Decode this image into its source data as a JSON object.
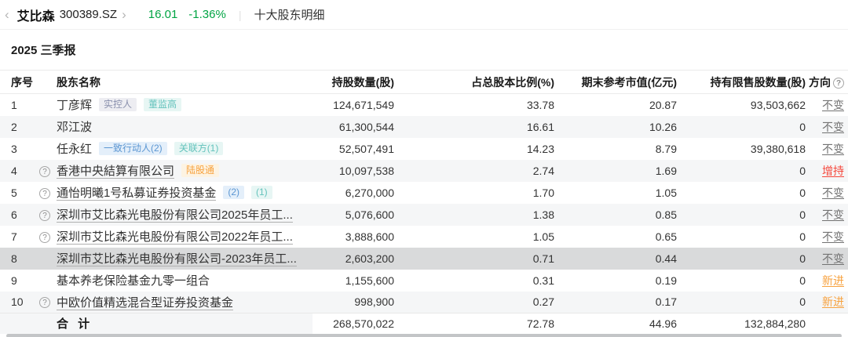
{
  "icons": {
    "back": "‹",
    "forward": "›",
    "help": "?"
  },
  "colors": {
    "quote_green": "#00a443",
    "direction_unchanged": "#737373",
    "direction_increase_red": "#f5473b",
    "direction_new_orange": "#f7a23f",
    "row_stripe": "#f5f6f7",
    "row_highlight": "#d9dadb",
    "badge_blue": "#5b96d2",
    "badge_teal": "#64c3bc",
    "badge_gray": "#8a90ad",
    "badge_orange": "#f7a23f"
  },
  "topbar": {
    "stock_name": "艾比森",
    "stock_code": "300389.SZ",
    "price": "16.01",
    "change": "-1.36%",
    "page_title": "十大股东明细"
  },
  "report_title": "2025 三季报",
  "table": {
    "headers": {
      "no": "序号",
      "name": "股东名称",
      "shares": "持股数量(股)",
      "pct": "占总股本比例(%)",
      "value": "期末参考市值(亿元)",
      "restricted": "持有限售股数量(股)",
      "direction": "方向"
    },
    "rows": [
      {
        "no": "1",
        "has_help": false,
        "name": "丁彦辉",
        "underlined": false,
        "highlighted": false,
        "badges": [
          {
            "text": "实控人",
            "type": "gray"
          },
          {
            "text": "董监高",
            "type": "teal"
          }
        ],
        "shares": "124,671,549",
        "pct": "33.78",
        "value": "20.87",
        "restricted": "93,503,662",
        "direction": "不变",
        "direction_type": "unchanged"
      },
      {
        "no": "2",
        "has_help": false,
        "name": "邓江波",
        "underlined": false,
        "highlighted": false,
        "badges": [],
        "shares": "61,300,544",
        "pct": "16.61",
        "value": "10.26",
        "restricted": "0",
        "direction": "不变",
        "direction_type": "unchanged"
      },
      {
        "no": "3",
        "has_help": false,
        "name": "任永红",
        "underlined": false,
        "highlighted": false,
        "badges": [
          {
            "text": "一致行动人(2)",
            "type": "blue"
          },
          {
            "text": "关联方(1)",
            "type": "teal"
          }
        ],
        "shares": "52,507,491",
        "pct": "14.23",
        "value": "8.79",
        "restricted": "39,380,618",
        "direction": "不变",
        "direction_type": "unchanged"
      },
      {
        "no": "4",
        "has_help": true,
        "name": "香港中央結算有限公司",
        "underlined": true,
        "highlighted": false,
        "badges": [
          {
            "text": "陆股通",
            "type": "orange"
          }
        ],
        "shares": "10,097,538",
        "pct": "2.74",
        "value": "1.69",
        "restricted": "0",
        "direction": "增持",
        "direction_type": "increase"
      },
      {
        "no": "5",
        "has_help": true,
        "name": "通怡明曦1号私募证券投资基金",
        "underlined": true,
        "highlighted": false,
        "badges": [
          {
            "text": "(2)",
            "type": "blue"
          },
          {
            "text": "(1)",
            "type": "teal"
          }
        ],
        "shares": "6,270,000",
        "pct": "1.70",
        "value": "1.05",
        "restricted": "0",
        "direction": "不变",
        "direction_type": "unchanged"
      },
      {
        "no": "6",
        "has_help": true,
        "name": "深圳市艾比森光电股份有限公司2025年员工...",
        "underlined": true,
        "highlighted": false,
        "badges": [],
        "shares": "5,076,600",
        "pct": "1.38",
        "value": "0.85",
        "restricted": "0",
        "direction": "不变",
        "direction_type": "unchanged"
      },
      {
        "no": "7",
        "has_help": true,
        "name": "深圳市艾比森光电股份有限公司2022年员工...",
        "underlined": true,
        "highlighted": false,
        "badges": [],
        "shares": "3,888,600",
        "pct": "1.05",
        "value": "0.65",
        "restricted": "0",
        "direction": "不变",
        "direction_type": "unchanged"
      },
      {
        "no": "8",
        "has_help": false,
        "name": "深圳市艾比森光电股份有限公司-2023年员工...",
        "underlined": true,
        "highlighted": true,
        "badges": [],
        "shares": "2,603,200",
        "pct": "0.71",
        "value": "0.44",
        "restricted": "0",
        "direction": "不变",
        "direction_type": "unchanged"
      },
      {
        "no": "9",
        "has_help": false,
        "name": "基本养老保险基金九零一组合",
        "underlined": false,
        "highlighted": false,
        "badges": [],
        "shares": "1,155,600",
        "pct": "0.31",
        "value": "0.19",
        "restricted": "0",
        "direction": "新进",
        "direction_type": "new"
      },
      {
        "no": "10",
        "has_help": true,
        "name": "中欧价值精选混合型证券投资基金",
        "underlined": true,
        "highlighted": false,
        "badges": [],
        "shares": "998,900",
        "pct": "0.27",
        "value": "0.17",
        "restricted": "0",
        "direction": "新进",
        "direction_type": "new"
      }
    ],
    "total": {
      "label": "合 计",
      "shares": "268,570,022",
      "pct": "72.78",
      "value": "44.96",
      "restricted": "132,884,280"
    }
  }
}
